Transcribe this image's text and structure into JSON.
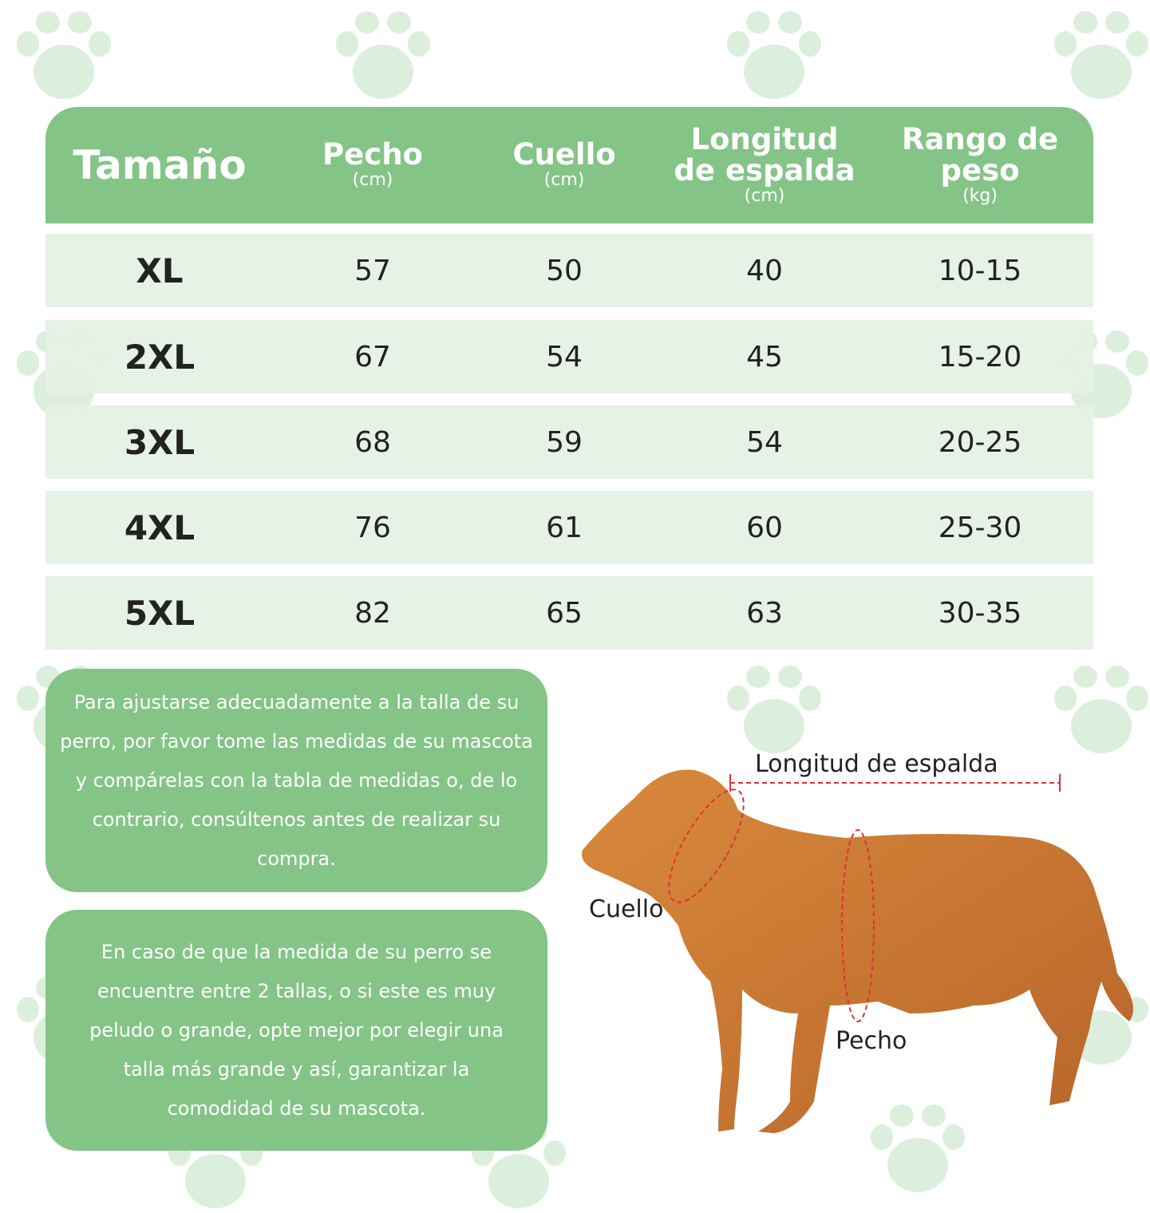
{
  "header": {
    "size": "Tamaño",
    "chest": "Pecho",
    "chest_unit": "(cm)",
    "neck": "Cuello",
    "neck_unit": "(cm)",
    "back": "Longitud de espalda",
    "back_unit": "(cm)",
    "weight": "Rango de peso",
    "weight_unit": "(kg)"
  },
  "rows": [
    {
      "size": "XL",
      "chest": "57",
      "neck": "50",
      "back": "40",
      "weight": "10-15"
    },
    {
      "size": "2XL",
      "chest": "67",
      "neck": "54",
      "back": "45",
      "weight": "15-20"
    },
    {
      "size": "3XL",
      "chest": "68",
      "neck": "59",
      "back": "54",
      "weight": "20-25"
    },
    {
      "size": "4XL",
      "chest": "76",
      "neck": "61",
      "back": "60",
      "weight": "25-30"
    },
    {
      "size": "5XL",
      "chest": "82",
      "neck": "65",
      "back": "63",
      "weight": "30-35"
    }
  ],
  "notes": [
    "Para ajustarse adecuadamente a la talla de su perro, por favor tome las medidas de su mascota y compárelas con la tabla de medidas o, de lo contrario, consúltenos antes de realizar su compra.",
    "En caso de que la medida de su perro se encuentre entre 2 tallas, o si este es muy peludo o grande, opte mejor por elegir una talla más grande y así, garantizar la comodidad de su mascota."
  ],
  "diagram": {
    "back_label": "Longitud de espalda",
    "neck_label": "Cuello",
    "chest_label": "Pecho"
  },
  "colors": {
    "accent": "#84c487",
    "row": "#e4f1e4",
    "paw": "#dcefdc",
    "measure": "#e0303a"
  }
}
